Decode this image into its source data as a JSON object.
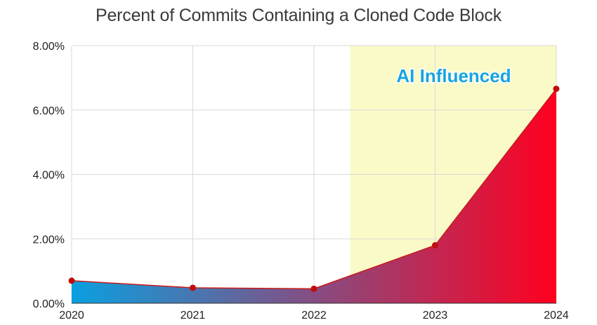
{
  "chart_data": {
    "type": "area",
    "title": "Percent of Commits Containing a Cloned Code Block",
    "xlabel": "",
    "ylabel": "",
    "x": [
      "2020",
      "2021",
      "2022",
      "2023",
      "2024"
    ],
    "series": [
      {
        "values": [
          0.7,
          0.48,
          0.45,
          1.8,
          6.66
        ]
      }
    ],
    "ylim": [
      0,
      8
    ],
    "y_ticks": [
      "0.00%",
      "2.00%",
      "4.00%",
      "6.00%",
      "8.00%"
    ],
    "grid": true,
    "annotations": [
      {
        "text": "AI Influenced",
        "region_x": [
          2022.3,
          2024
        ]
      }
    ],
    "colors": {
      "line": "#c81a1a",
      "marker": "#c00c0c",
      "fill_start": "#0aa0e0",
      "fill_mid": "#8a4a7e",
      "fill_end": "#ff0020",
      "highlight": "#fafac8",
      "annotation_text": "#18a4e0",
      "grid": "#d9d9d9"
    }
  }
}
